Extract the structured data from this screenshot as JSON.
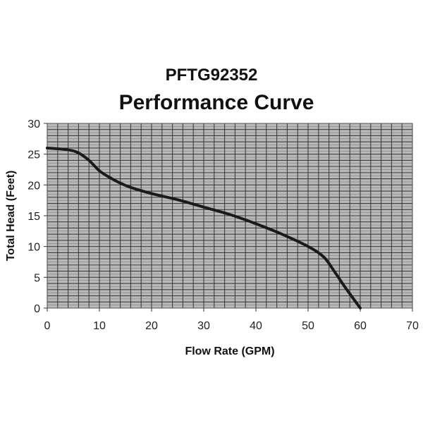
{
  "chart_data": {
    "type": "line",
    "title": "PFTG92352",
    "subtitle": "Performance Curve",
    "xlabel": "Flow Rate (GPM)",
    "ylabel": "Total Head (Feet)",
    "xlim": [
      0,
      70
    ],
    "ylim": [
      0,
      30
    ],
    "xticks": [
      0,
      10,
      20,
      30,
      40,
      50,
      60,
      70
    ],
    "yticks": [
      0,
      5,
      10,
      15,
      20,
      25,
      30
    ],
    "grid": true,
    "colors": {
      "background": "#b8b8b8",
      "grid": "#333333",
      "line": "#1a1a1a"
    },
    "series": [
      {
        "x": [
          0,
          4,
          6,
          8,
          10,
          12,
          14,
          16,
          20,
          25,
          30,
          35,
          40,
          45,
          50,
          53,
          55,
          57,
          60
        ],
        "y": [
          26,
          25.7,
          25.2,
          24,
          22.3,
          21.2,
          20.3,
          19.6,
          18.6,
          17.6,
          16.4,
          15.2,
          13.7,
          12,
          10,
          8.3,
          6,
          3.5,
          0
        ]
      }
    ]
  }
}
